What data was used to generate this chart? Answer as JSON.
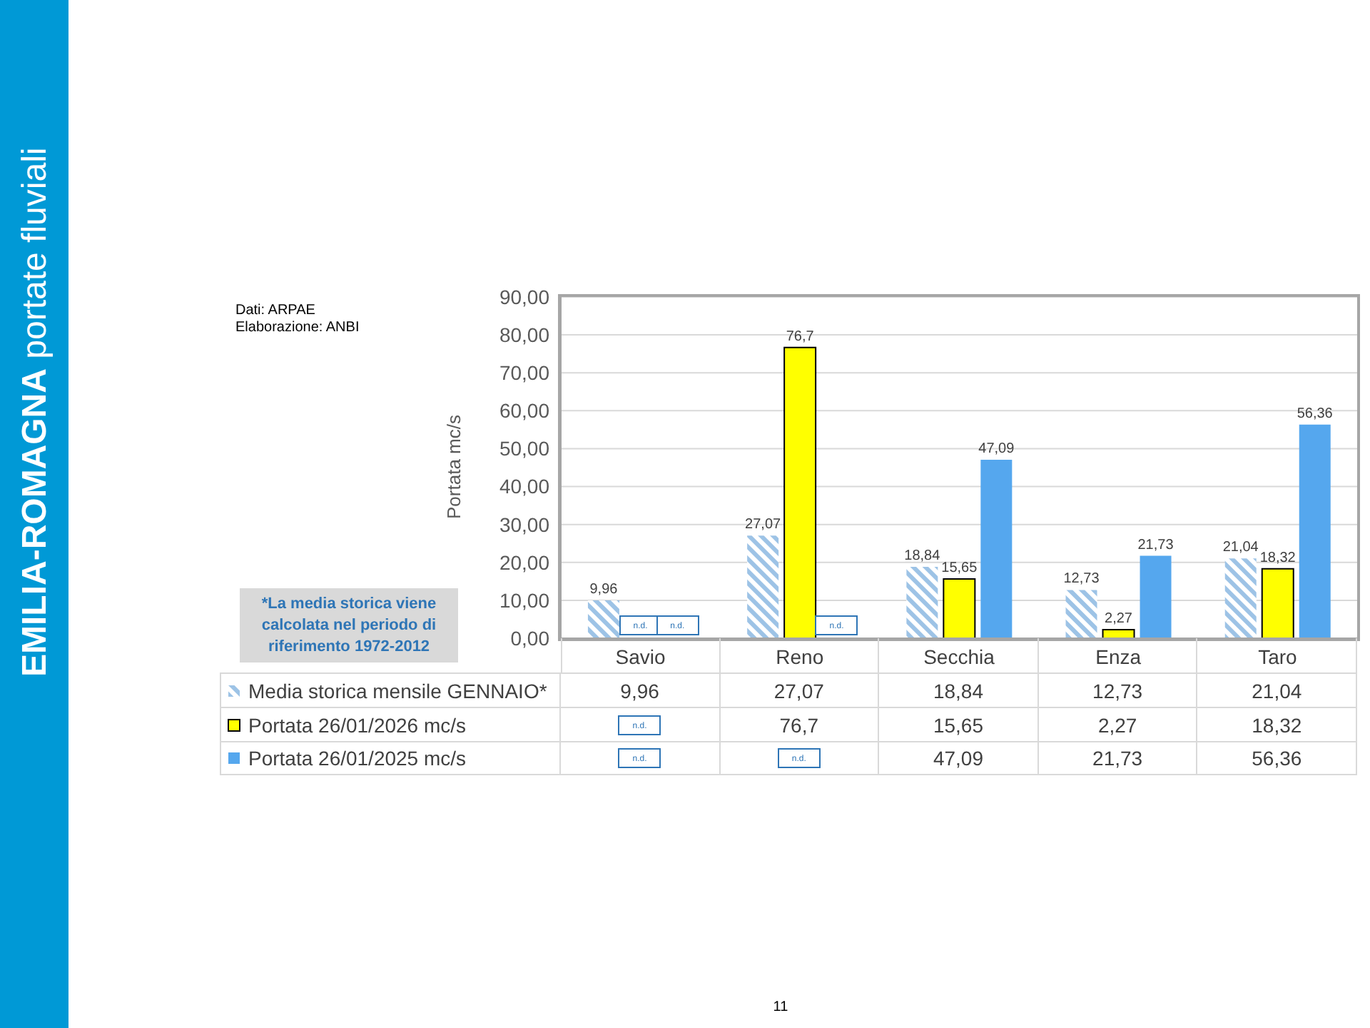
{
  "chart_data": {
    "type": "bar",
    "title": "EMILIA-ROMAGNA",
    "subtitle": "portate fluviali",
    "ylabel": "Portata mc/s",
    "categories": [
      "Savio",
      "Reno",
      "Secchia",
      "Enza",
      "Taro"
    ],
    "series": [
      {
        "name": "Media storica mensile GENNAIO*",
        "color": "#9dc3e6",
        "values": [
          9.96,
          27.07,
          18.84,
          12.73,
          21.04
        ],
        "value_labels": [
          "9,96",
          "27,07",
          "18,84",
          "12,73",
          "21,04"
        ]
      },
      {
        "name": "Portata 26/01/2026 mc/s",
        "color": "#ffff00",
        "values": [
          null,
          76.7,
          15.65,
          2.27,
          18.32
        ],
        "value_labels": [
          "n.d.",
          "76,7",
          "15,65",
          "2,27",
          "18,32"
        ]
      },
      {
        "name": "Portata 26/01/2025 mc/s",
        "color": "#55a7ee",
        "values": [
          null,
          null,
          47.09,
          21.73,
          56.36
        ],
        "value_labels": [
          "n.d.",
          "n.d.",
          "47,09",
          "21,73",
          "56,36"
        ]
      }
    ],
    "ylim": [
      0,
      90
    ],
    "yticks": [
      {
        "value": 0,
        "label": "0,00"
      },
      {
        "value": 10,
        "label": "10,00"
      },
      {
        "value": 20,
        "label": "20,00"
      },
      {
        "value": 30,
        "label": "30,00"
      },
      {
        "value": 40,
        "label": "40,00"
      },
      {
        "value": 50,
        "label": "50,00"
      },
      {
        "value": 60,
        "label": "60,00"
      },
      {
        "value": 70,
        "label": "70,00"
      },
      {
        "value": 80,
        "label": "80,00"
      },
      {
        "value": 90,
        "label": "90,00"
      }
    ],
    "grid": "y",
    "legend": "bottom",
    "annotations": [
      "Dati: ARPAE",
      "Elaborazione: ANBI",
      "*La media storica viene calcolata nel periodo di riferimento 1972-2012",
      "11"
    ]
  }
}
